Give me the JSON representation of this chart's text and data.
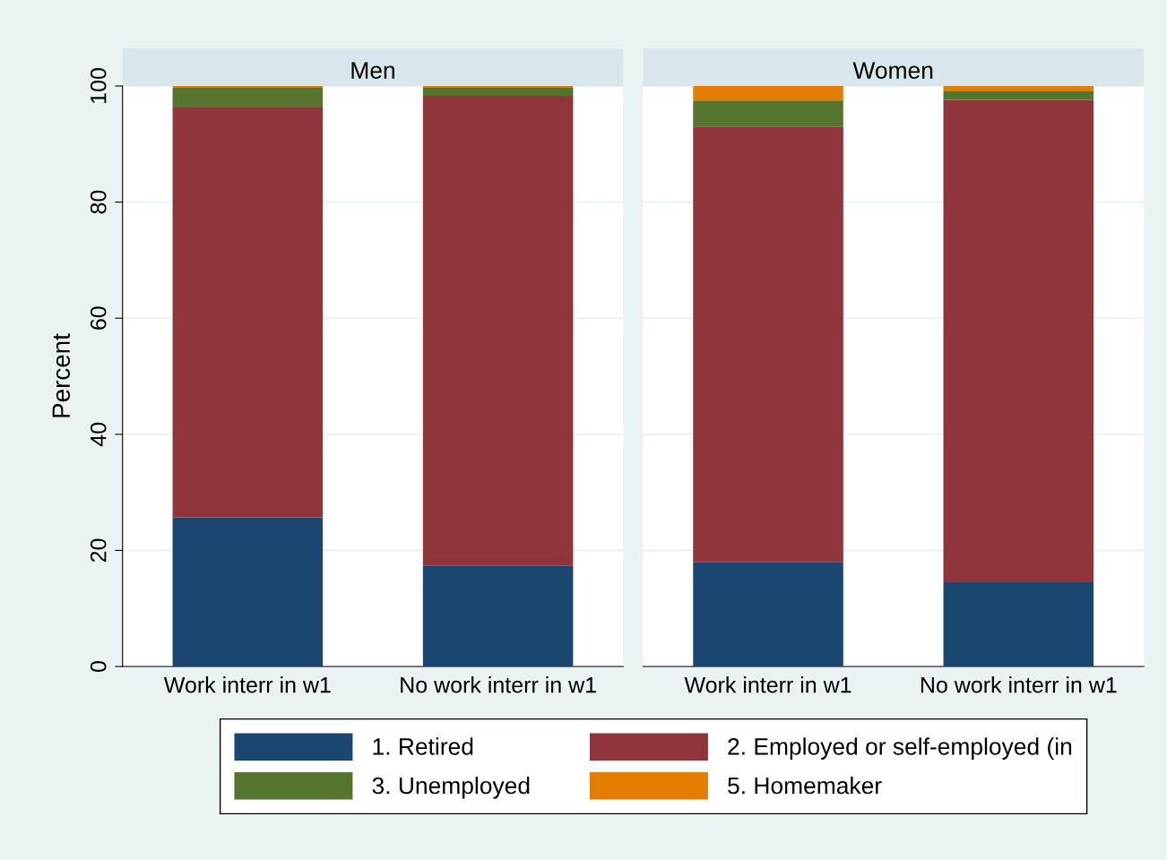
{
  "chart_data": [
    {
      "type": "bar",
      "title": "Men",
      "ylabel": "Percent",
      "stacked": true,
      "categories": [
        "Work interr in w1",
        "No work interr in w1"
      ],
      "ylim": [
        0,
        100
      ],
      "yticks": [
        0,
        20,
        40,
        60,
        80,
        100
      ],
      "grid": "y",
      "legend": "bottom",
      "series": [
        {
          "name": "1. Retired",
          "color": "#1a476f",
          "values": [
            25.7,
            17.4
          ]
        },
        {
          "name": "2. Employed or self-employed (in",
          "color": "#90353b",
          "values": [
            70.6,
            80.9
          ]
        },
        {
          "name": "3. Unemployed",
          "color": "#55752f",
          "values": [
            3.4,
            1.4
          ]
        },
        {
          "name": "5. Homemaker",
          "color": "#e37e00",
          "values": [
            0.3,
            0.3
          ]
        }
      ]
    },
    {
      "type": "bar",
      "title": "Women",
      "stacked": true,
      "categories": [
        "Work interr in w1",
        "No work interr in w1"
      ],
      "ylim": [
        0,
        100
      ],
      "yticks": [
        0,
        20,
        40,
        60,
        80,
        100
      ],
      "grid": "y",
      "tick_labels": "x",
      "series": [
        {
          "color": "#1a476f",
          "values": [
            18.0,
            14.5
          ]
        },
        {
          "color": "#90353b",
          "values": [
            75.0,
            83.1
          ]
        },
        {
          "color": "#55752f",
          "values": [
            4.5,
            1.6
          ]
        },
        {
          "color": "#e37e00",
          "values": [
            2.5,
            0.8
          ]
        }
      ]
    }
  ]
}
